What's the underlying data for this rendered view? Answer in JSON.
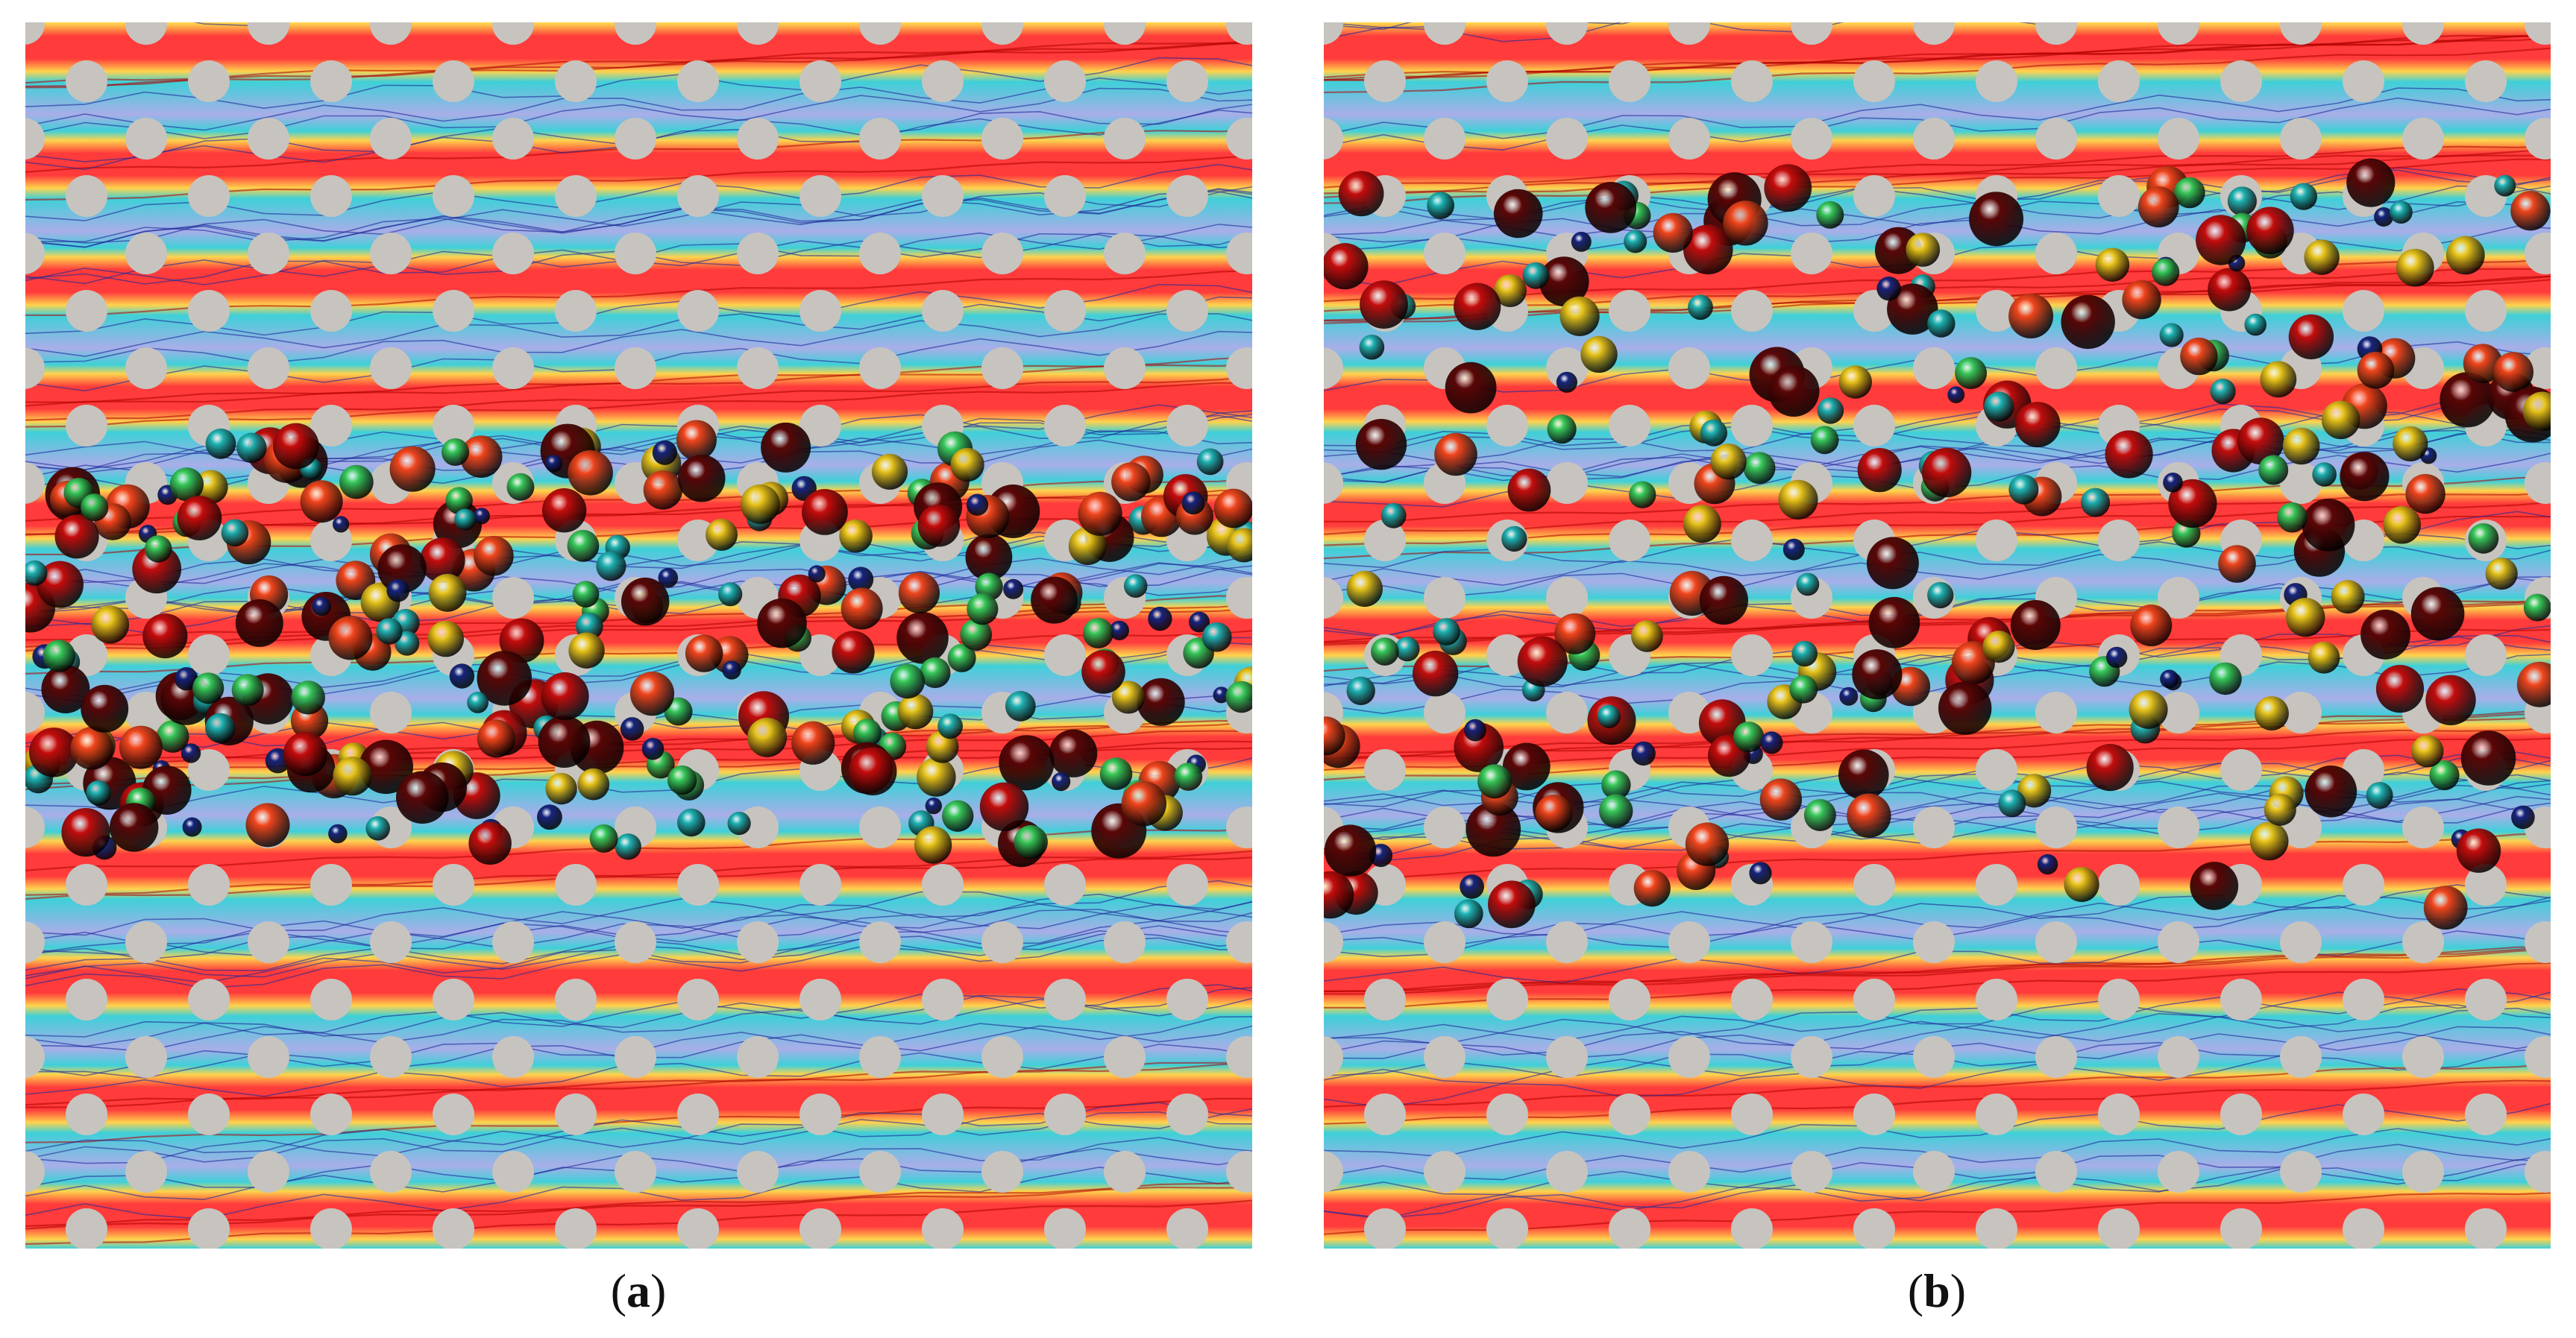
{
  "panels": [
    {
      "id": "a",
      "caption_open": "(",
      "caption_letter": "a",
      "caption_close": ")"
    },
    {
      "id": "b",
      "caption_open": "(",
      "caption_letter": "b",
      "caption_close": ")"
    }
  ],
  "colors": {
    "background_flow": "#a9aee8",
    "high_velocity": "#ff3b3b",
    "mid_velocity": "#ffd34d",
    "low_velocity": "#3fd0d8",
    "obstacle": "#c7c4bf",
    "streamline_slow": "#1e2a9a",
    "streamline_fast": "#b00000",
    "particle_colormap": [
      "#17257f",
      "#1fb3b3",
      "#38c95a",
      "#e7c31a",
      "#f0451c",
      "#c40c0c",
      "#5a0606"
    ]
  }
}
